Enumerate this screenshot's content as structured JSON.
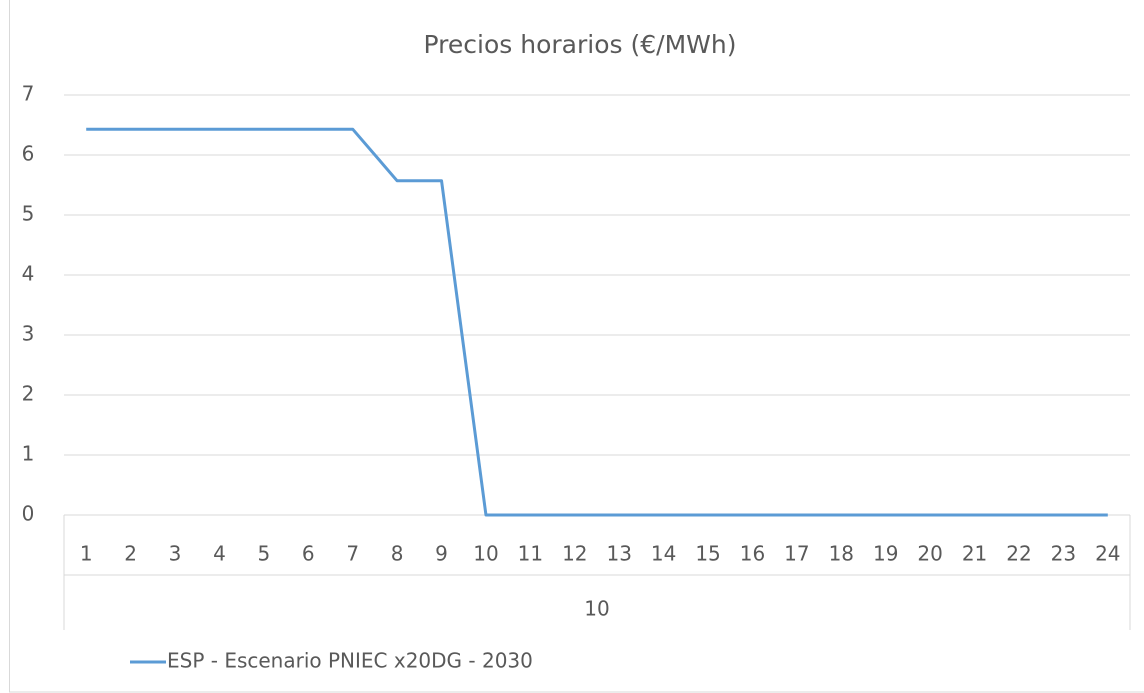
{
  "chart_data": {
    "type": "line",
    "title": "Precios horarios (€/MWh)",
    "categories": [
      "1",
      "2",
      "3",
      "4",
      "5",
      "6",
      "7",
      "8",
      "9",
      "10",
      "11",
      "12",
      "13",
      "14",
      "15",
      "16",
      "17",
      "18",
      "19",
      "20",
      "21",
      "22",
      "23",
      "24"
    ],
    "x_group_label": "10",
    "series": [
      {
        "name": "ESP - Escenario PNIEC x20DG - 2030",
        "color": "#5b9bd5",
        "values": [
          6.43,
          6.43,
          6.43,
          6.43,
          6.43,
          6.43,
          6.43,
          5.57,
          5.57,
          0,
          0,
          0,
          0,
          0,
          0,
          0,
          0,
          0,
          0,
          0,
          0,
          0,
          0,
          0
        ]
      }
    ],
    "ylim": [
      0,
      7
    ],
    "yticks": [
      0,
      1,
      2,
      3,
      4,
      5,
      6,
      7
    ],
    "grid": true,
    "legend": "bottom-left"
  }
}
